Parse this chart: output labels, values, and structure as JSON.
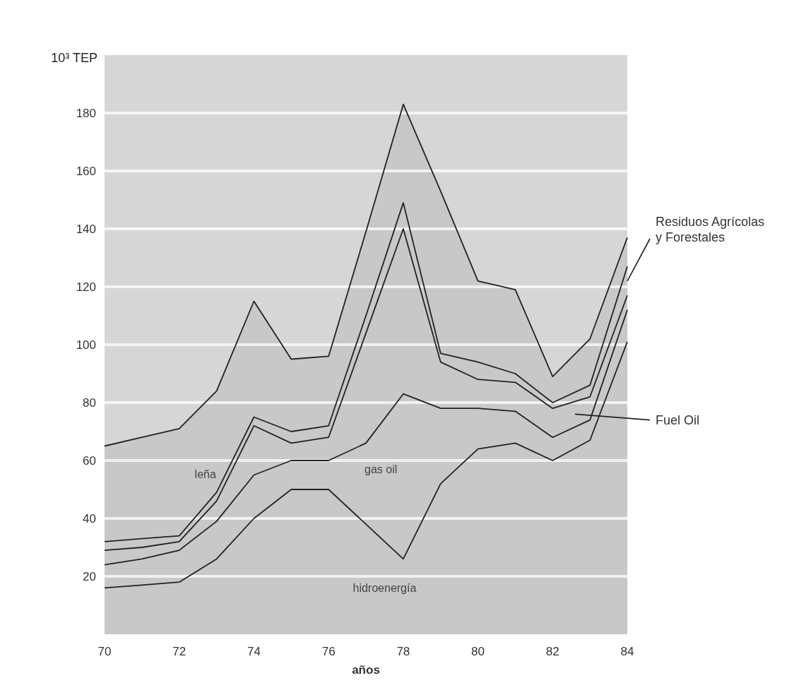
{
  "chart_data": {
    "type": "area",
    "stacked": true,
    "xlabel": "años",
    "ylabel": "10³ TEP",
    "x": [
      70,
      71,
      72,
      73,
      74,
      75,
      76,
      77,
      78,
      79,
      80,
      81,
      82,
      83,
      84
    ],
    "series": [
      {
        "name": "hidroenergía",
        "color": "#c8c8c8",
        "values": [
          16,
          17,
          18,
          26,
          40,
          50,
          50,
          38,
          26,
          52,
          64,
          66,
          60,
          67,
          101
        ]
      },
      {
        "name": "gas oil",
        "color": "#c8c8c8",
        "values": [
          8,
          9,
          11,
          13,
          15,
          10,
          10,
          28,
          57,
          26,
          14,
          11,
          8,
          7,
          11
        ]
      },
      {
        "name": "Fuel Oil",
        "color": "#c8c8c8",
        "values": [
          5,
          4,
          3,
          7,
          17,
          6,
          8,
          38,
          57,
          16,
          10,
          10,
          10,
          8,
          5
        ]
      },
      {
        "name": "Residuos Agrícolas y Forestales",
        "color": "#c8c8c8",
        "values": [
          3,
          3,
          2,
          3,
          3,
          4,
          4,
          6,
          9,
          3,
          6,
          3,
          2,
          4,
          10
        ]
      },
      {
        "name": "leña",
        "color": "#c8c8c8",
        "values": [
          33,
          35,
          37,
          35,
          40,
          25,
          24,
          29,
          34,
          56,
          28,
          29,
          9,
          16,
          10
        ]
      }
    ],
    "xlim": [
      70,
      84
    ],
    "ylim": [
      0,
      200
    ],
    "xticks": [
      70,
      72,
      74,
      76,
      78,
      80,
      82,
      84
    ],
    "yticks": [
      20,
      40,
      60,
      80,
      100,
      120,
      140,
      160,
      180
    ],
    "grid": "y"
  }
}
